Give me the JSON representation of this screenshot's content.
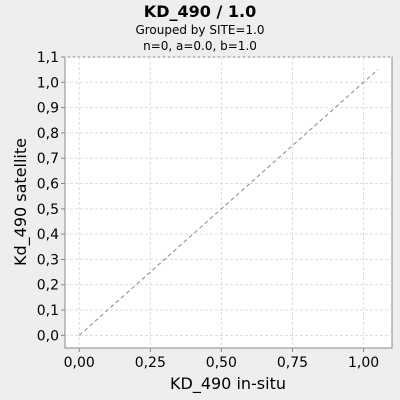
{
  "chart_data": {
    "type": "scatter",
    "title": "KD_490 / 1.0",
    "subtitle_lines": [
      "Grouped by SITE=1.0",
      "n=0, a=0.0, b=1.0"
    ],
    "xlabel": "KD_490 in-situ",
    "ylabel": "Kd_490 satellite",
    "xlim": [
      -0.05,
      1.1
    ],
    "ylim": [
      -0.05,
      1.1
    ],
    "x_ticks": [
      0.0,
      0.25,
      0.5,
      0.75,
      1.0
    ],
    "x_tick_labels": [
      "0,00",
      "0,25",
      "0,50",
      "0,75",
      "1,00"
    ],
    "y_ticks": [
      0.0,
      0.1,
      0.2,
      0.3,
      0.4,
      0.5,
      0.6,
      0.7,
      0.8,
      0.9,
      1.0,
      1.1
    ],
    "y_tick_labels": [
      "0,0",
      "0,1",
      "0,2",
      "0,3",
      "0,4",
      "0,5",
      "0,6",
      "0,7",
      "0,8",
      "0,9",
      "1,0",
      "1,1"
    ],
    "series": [
      {
        "values": []
      }
    ],
    "reference_line": {
      "x": [
        0.0,
        1.05
      ],
      "y": [
        0.0,
        1.05
      ],
      "style": "dashed",
      "color": "#888888"
    },
    "grid": true,
    "colors": {
      "background": "#eeeeee",
      "plot_background": "#ffffff",
      "grid": "#dddddd",
      "axis": "#888888"
    }
  }
}
